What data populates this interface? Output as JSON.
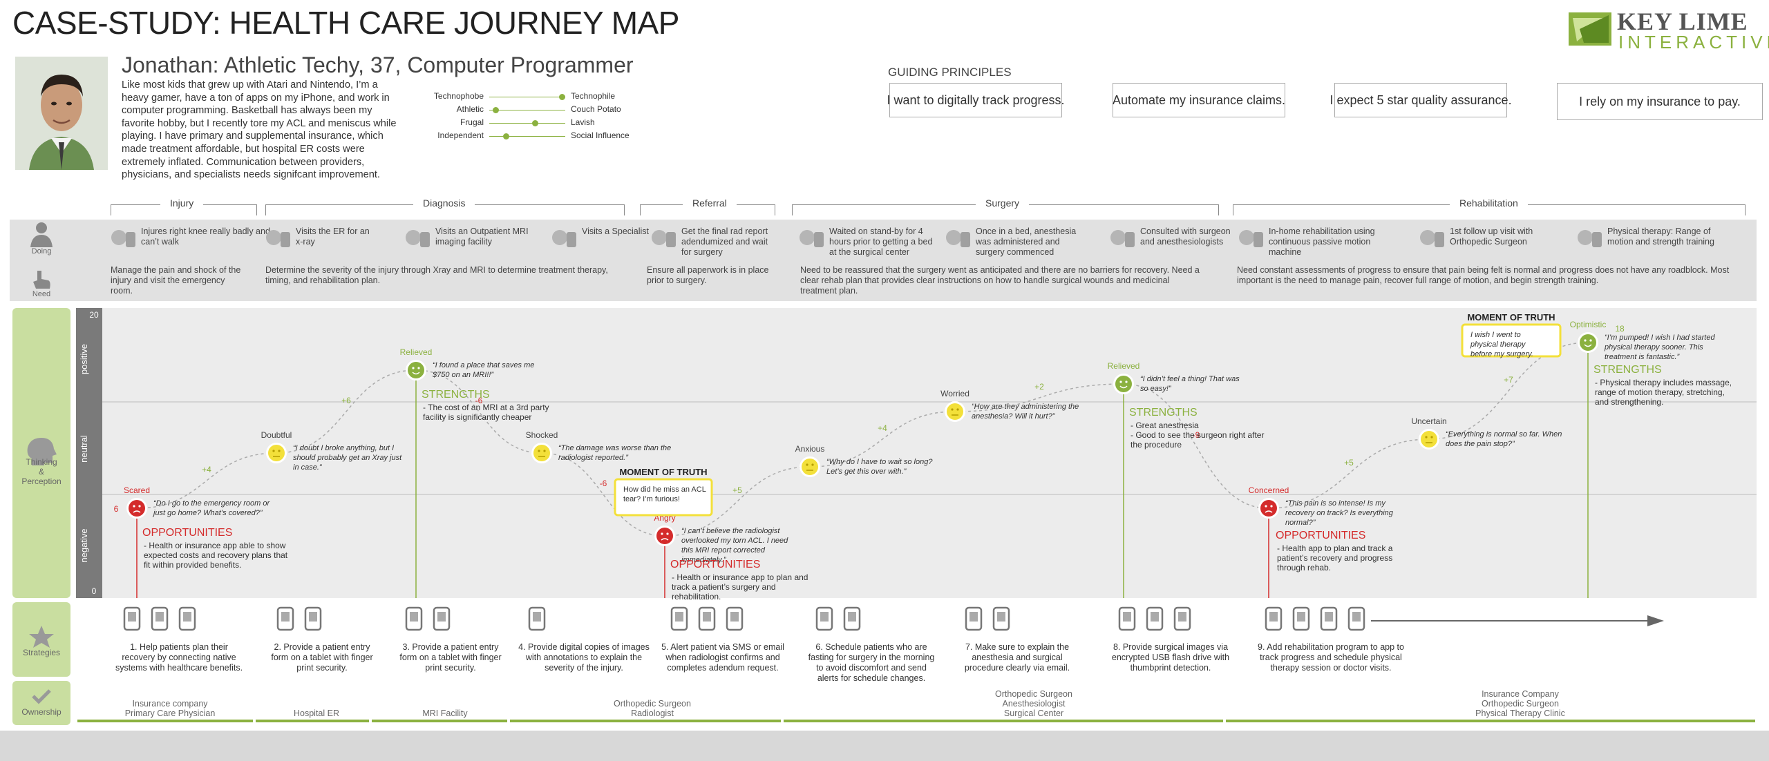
{
  "title": "CASE-STUDY: HEALTH CARE JOURNEY MAP",
  "logo": {
    "line1": "KEY LIME",
    "line2": "INTERACTIVE"
  },
  "persona": {
    "name": "Jonathan:  Athletic Techy, 37, Computer Programmer",
    "bio": "Like most kids that grew up with Atari and Nintendo, I’m a heavy gamer, have a ton of apps on my iPhone, and work in computer programming. Basketball has always been my favorite hobby, but I recently tore my ACL and meniscus while playing. I have primary and supplemental insurance, which made treatment affordable, but hospital ER costs were extremely inflated. Communication between providers, physicians, and specialists needs signifcant improvement.",
    "sliders": [
      {
        "left": "Technophobe",
        "right": "Technophile",
        "value": 0.95
      },
      {
        "left": "Athletic",
        "right": "Couch Potato",
        "value": 0.08
      },
      {
        "left": "Frugal",
        "right": "Lavish",
        "value": 0.6
      },
      {
        "left": "Independent",
        "right": "Social Influence",
        "value": 0.22
      }
    ]
  },
  "guiding": {
    "label": "GUIDING PRINCIPLES",
    "principles": [
      "I want to digitally track progress.",
      "Automate my insurance claims.",
      "I expect 5 star quality assurance.",
      "I rely on my insurance to pay."
    ]
  },
  "stages": [
    "Injury",
    "Diagnosis",
    "Referral",
    "Surgery",
    "Rehabilitation"
  ],
  "side_labels": {
    "doing": "Doing",
    "need": "Need",
    "thinking": "Thinking\n&\nPerception",
    "strategies": "Strategies",
    "ownership": "Ownership"
  },
  "doing": [
    {
      "text": "Injures right knee really badly and can’t walk",
      "icon": "basketball-icon"
    },
    {
      "text": "Visits the ER for an x-ray",
      "icon": "hospital-icon"
    },
    {
      "text": "Visits an Outpatient MRI imaging facility",
      "icon": "mri-icon"
    },
    {
      "text": "Visits a Specialist",
      "icon": "doctor-icon"
    },
    {
      "text": "Get the final rad report adendumized and wait for surgery",
      "icon": "clipboard-icon"
    },
    {
      "text": "Waited on stand-by for 4 hours prior to getting a bed at the surgical center",
      "icon": "waiting-icon"
    },
    {
      "text": "Once in a bed, anesthesia was administered and surgery commenced",
      "icon": "bed-icon"
    },
    {
      "text": "Consulted with surgeon and anesthesiologists",
      "icon": "surgeon-icon"
    },
    {
      "text": "In-home rehabilitation using continuous passive motion machine",
      "icon": "rehab-icon"
    },
    {
      "text": "1st follow up visit with Orthopedic Surgeon",
      "icon": "followup-icon"
    },
    {
      "text": "Physical therapy: Range of motion and strength training",
      "icon": "therapy-icon"
    }
  ],
  "needs": [
    "Manage the pain and shock of the injury and visit the emergency room.",
    "Determine the severity of the injury through Xray and MRI to determine treatment therapy, timing, and rehabilitation plan.",
    "Ensure all paperwork is in place prior to surgery.",
    "Need to be reassured that the surgery went as anticipated and there are no barriers for recovery. Need a clear rehab plan that provides clear instructions on how to handle surgical wounds and medicinal treatment plan.",
    "Need constant assessments of progress to ensure that pain being felt is normal and progress does not have any roadblock. Most important is the need to manage pain, recover full range of motion, and begin strength training."
  ],
  "chart_data": {
    "type": "line",
    "ylim": [
      0,
      20
    ],
    "y_ticks": [
      "20",
      "0"
    ],
    "zones": [
      "positive",
      "neutral",
      "negative"
    ],
    "points": [
      {
        "emotion": "Scared",
        "score": 6,
        "quote": "“Do I go to the emergency room or just go home? What’s covered?”",
        "mood": "sad"
      },
      {
        "emotion": "Doubtful",
        "score": 10,
        "quote": "“I doubt I broke anything, but I should probably get an Xray just in case.”",
        "mood": "neutral"
      },
      {
        "emotion": "Relieved",
        "score": 16,
        "quote": "“I found a place that saves me $750 on an MRI!!”",
        "mood": "happy"
      },
      {
        "emotion": "Shocked",
        "score": 10,
        "quote": "“The damage was worse than the radiologist reported.”",
        "mood": "neutral"
      },
      {
        "emotion": "Angry",
        "score": 4,
        "quote": "“I can’t believe the radiologist overlooked my torn ACL. I need this MRI report corrected immediately.”",
        "mood": "sad"
      },
      {
        "emotion": "Anxious",
        "score": 9,
        "quote": "“Why do I have to wait so long? Let’s get this over with.”",
        "mood": "neutral"
      },
      {
        "emotion": "Worried",
        "score": 13,
        "quote": "“How are they administering the anesthesia? Will it hurt?”",
        "mood": "neutral"
      },
      {
        "emotion": "Relieved",
        "score": 15,
        "quote": "“I didn’t feel a thing! That was so easy!”",
        "mood": "happy"
      },
      {
        "emotion": "Concerned",
        "score": 6,
        "quote": "“This pain is so intense! Is my recovery on track? Is everything normal?”",
        "mood": "sad"
      },
      {
        "emotion": "Uncertain",
        "score": 11,
        "quote": "“Everything is normal so far. When does the pain stop?”",
        "mood": "neutral"
      },
      {
        "emotion": "Optimistic",
        "score": 18,
        "quote": "“I’m pumped! I wish I had started physical therapy sooner. This treatment is fantastic.”",
        "mood": "happy"
      }
    ],
    "deltas": [
      "+4",
      "+6",
      "-6",
      "-6",
      "+5",
      "+4",
      "+2",
      "-9",
      "+5",
      "+7"
    ],
    "start_label": "6",
    "end_label": "18",
    "moments_of_truth": [
      {
        "title": "MOMENT OF TRUTH",
        "text": "How did he miss an ACL tear? I’m furious!"
      },
      {
        "title": "MOMENT OF TRUTH",
        "text": "I wish I went to physical therapy before my surgery."
      }
    ],
    "callouts": [
      {
        "title": "OPPORTUNITIES",
        "text": "- Health or insurance app able to show expected costs and recovery plans that fit within provided benefits.",
        "kind": "opportunity"
      },
      {
        "title": "STRENGTHS",
        "text": "- The cost of an MRI at a 3rd party facility is significantly cheaper",
        "kind": "strength"
      },
      {
        "title": "OPPORTUNITIES",
        "text": "- Health or insurance app to plan and track a patient’s surgery and rehabilitation.",
        "kind": "opportunity"
      },
      {
        "title": "STRENGTHS",
        "text": "- Great anesthesia\n- Good to see the surgeon right after the procedure",
        "kind": "strength"
      },
      {
        "title": "OPPORTUNITIES",
        "text": "- Health app to plan and track a patient’s recovery and progress through rehab.",
        "kind": "opportunity"
      },
      {
        "title": "STRENGTHS",
        "text": "- Physical therapy includes massage, range of motion therapy, stretching, and strengthening.",
        "kind": "strength"
      }
    ]
  },
  "strategies": [
    {
      "text": "1. Help patients plan their recovery by connecting native systems with healthcare benefits.",
      "icons": [
        "phone-icon",
        "heart-icon",
        "fingerprint-icon"
      ]
    },
    {
      "text": "2. Provide a patient entry form on a tablet with finger print security.",
      "icons": [
        "tablet-icon",
        "fingerprint-icon"
      ]
    },
    {
      "text": "3. Provide a patient entry form on a tablet with finger print security.",
      "icons": [
        "tablet-icon",
        "fingerprint-icon"
      ]
    },
    {
      "text": "4. Provide digital copies of images with annotations to explain the severity of the injury.",
      "icons": [
        "image-doc-icon"
      ]
    },
    {
      "text": "5. Alert patient via SMS or email when radiologist confirms and completes adendum request.",
      "icons": [
        "phone-icon",
        "sms-icon",
        "email-icon"
      ]
    },
    {
      "text": "6. Schedule patients who are fasting for surgery in the morning to avoid discomfort and send alerts for schedule changes.",
      "icons": [
        "calendar-icon",
        "sms-icon"
      ]
    },
    {
      "text": "7. Make sure to explain the anesthesia and surgical procedure clearly via email.",
      "icons": [
        "question-chat-icon",
        "email-icon"
      ]
    },
    {
      "text": "8. Provide surgical images via encrypted USB flash drive with thumbprint detection.",
      "icons": [
        "xray-icon",
        "usb-icon",
        "fingerprint-icon"
      ]
    },
    {
      "text": "9. Add rehabilitation program to app to track progress and schedule physical therapy session or doctor visits.",
      "icons": [
        "phone-icon",
        "heart-icon",
        "chart-icon",
        "calendar-icon"
      ]
    }
  ],
  "ownership": [
    {
      "text": "Insurance company\nPrimary Care Physician"
    },
    {
      "text": "Hospital ER"
    },
    {
      "text": "MRI Facility"
    },
    {
      "text": "Orthopedic Surgeon\nRadiologist"
    },
    {
      "text": "Orthopedic Surgeon\nAnesthesiologist\nSurgical Center"
    },
    {
      "text": "Insurance Company\nOrthopedic Surgeon\nPhysical Therapy Clinic"
    }
  ],
  "colors": {
    "green": "#8bb13f",
    "red": "#d42b2b",
    "yellow": "#f3e03a",
    "band": "#e1e1e1",
    "panel": "#c9dea0"
  }
}
